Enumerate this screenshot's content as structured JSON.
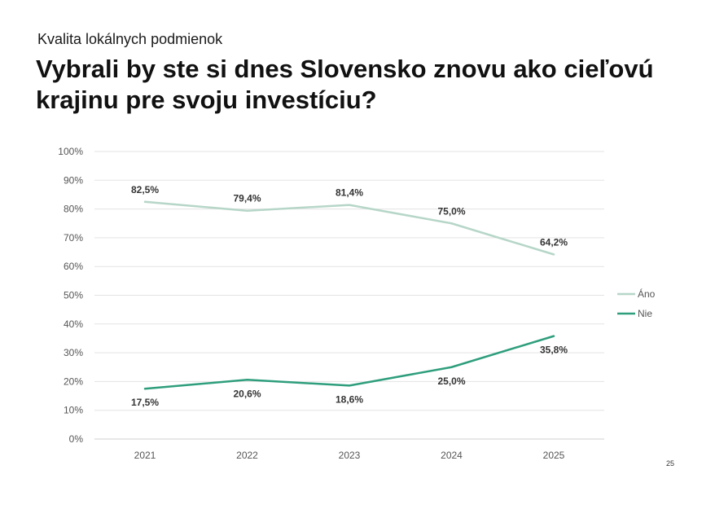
{
  "header": {
    "kicker": "Kvalita lokálnych podmienok",
    "title_line1": "Vybrali by ste si dnes Slovensko znovu ako cieľovú",
    "title_line2": "krajinu pre svoju investíciu?"
  },
  "page_number": "25",
  "chart_data": {
    "type": "line",
    "title": "",
    "xlabel": "",
    "ylabel": "",
    "categories": [
      "2021",
      "2022",
      "2023",
      "2024",
      "2025"
    ],
    "ylim": [
      0,
      100
    ],
    "yticks": [
      0,
      10,
      20,
      30,
      40,
      50,
      60,
      70,
      80,
      90,
      100
    ],
    "ytick_labels": [
      "0%",
      "10%",
      "20%",
      "30%",
      "40%",
      "50%",
      "60%",
      "70%",
      "80%",
      "90%",
      "100%"
    ],
    "grid": true,
    "legend_position": "right",
    "series": [
      {
        "name": "Áno",
        "color": "#b6d6c8",
        "values": [
          82.5,
          79.4,
          81.4,
          75.0,
          64.2
        ],
        "labels": [
          "82,5%",
          "79,4%",
          "81,4%",
          "75,0%",
          "64,2%"
        ],
        "label_position": "above"
      },
      {
        "name": "Nie",
        "color": "#2e9e7c",
        "values": [
          17.5,
          20.6,
          18.6,
          25.0,
          35.8
        ],
        "labels": [
          "17,5%",
          "20,6%",
          "18,6%",
          "25,0%",
          "35,8%"
        ],
        "label_position": "below"
      }
    ]
  }
}
